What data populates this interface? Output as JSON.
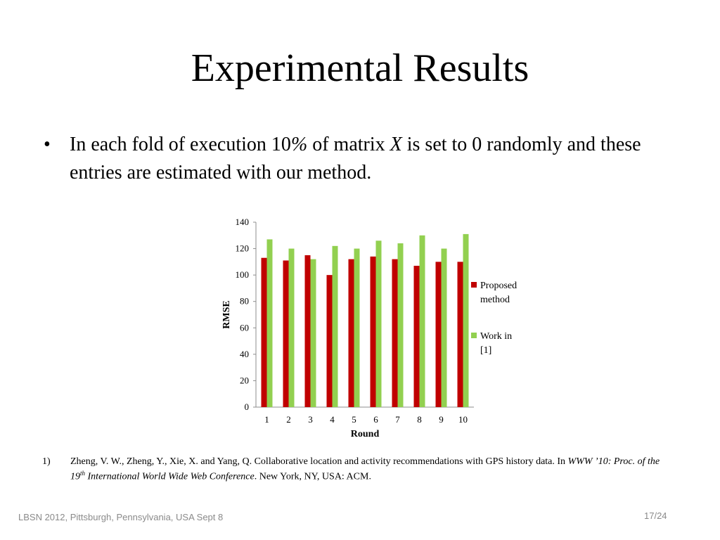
{
  "slide": {
    "title": "Experimental Results",
    "bullet_marker": "•",
    "bullet_parts": [
      "In each fold of execution 10",
      "%",
      " of matrix ",
      "X",
      " is set to 0 randomly and these entries are estimated with our method."
    ],
    "reference": {
      "number": "1)",
      "part1": "Zheng, V. W., Zheng, Y., Xie, X. and Yang, Q. Collaborative location and activity recommendations with GPS history data. In ",
      "italic_a": "WWW ’10: Proc. of the 19",
      "sup": "th",
      "italic_b": " International World Wide Web Conference",
      "part2": ". New York, NY, USA: ACM."
    },
    "footer": "LBSN 2012, Pittsburgh, Pennsylvania, USA  Sept 8",
    "page_number": "17/24"
  },
  "chart_data": {
    "type": "bar",
    "categories": [
      "1",
      "2",
      "3",
      "4",
      "5",
      "6",
      "7",
      "8",
      "9",
      "10"
    ],
    "series": [
      {
        "name": "Proposed method",
        "legend_lines": [
          "Proposed",
          "method"
        ],
        "color": "#c00000",
        "values": [
          113,
          111,
          115,
          100,
          112,
          114,
          112,
          107,
          110,
          110
        ]
      },
      {
        "name": "Work in [1]",
        "legend_lines": [
          "Work in",
          "[1]"
        ],
        "color": "#92d050",
        "values": [
          127,
          120,
          112,
          122,
          120,
          126,
          124,
          130,
          120,
          131
        ]
      }
    ],
    "xlabel": "Round",
    "ylabel": "RMSE",
    "ylim": [
      0,
      140
    ],
    "yticks": [
      0,
      20,
      40,
      60,
      80,
      100,
      120,
      140
    ],
    "grid": false,
    "legend": "right"
  }
}
